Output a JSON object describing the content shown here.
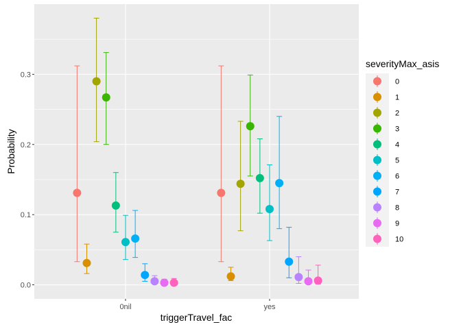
{
  "chart_data": {
    "type": "scatter",
    "xlabel": "triggerTravel_fac",
    "ylabel": "Probability",
    "categories": [
      "0nil",
      "yes"
    ],
    "ylim": [
      -0.02,
      0.4
    ],
    "yticks": [
      "0.0",
      "0.1",
      "0.2",
      "0.3"
    ],
    "grid": true,
    "legend_title": "severityMax_asis",
    "legend_position": "right",
    "series": [
      {
        "name": "0",
        "color": "#F8766D",
        "values": [
          0.131,
          0.131
        ],
        "lower": [
          0.033,
          0.033
        ],
        "upper": [
          0.312,
          0.312
        ]
      },
      {
        "name": "1",
        "color": "#D89000",
        "values": [
          0.031,
          0.012
        ],
        "lower": [
          0.016,
          0.006
        ],
        "upper": [
          0.058,
          0.025
        ]
      },
      {
        "name": "2",
        "color": "#A3A500",
        "values": [
          0.29,
          0.144
        ],
        "lower": [
          0.204,
          0.077
        ],
        "upper": [
          0.38,
          0.233
        ]
      },
      {
        "name": "3",
        "color": "#39B600",
        "values": [
          0.267,
          0.226
        ],
        "lower": [
          0.2,
          0.155
        ],
        "upper": [
          0.331,
          0.299
        ]
      },
      {
        "name": "4",
        "color": "#00BF7D",
        "values": [
          0.113,
          0.152
        ],
        "lower": [
          0.075,
          0.102
        ],
        "upper": [
          0.16,
          0.208
        ]
      },
      {
        "name": "5",
        "color": "#00BFC4",
        "values": [
          0.061,
          0.108
        ],
        "lower": [
          0.036,
          0.063
        ],
        "upper": [
          0.099,
          0.171
        ]
      },
      {
        "name": "6",
        "color": "#00B0F6",
        "values": [
          0.066,
          0.145
        ],
        "lower": [
          0.039,
          0.08
        ],
        "upper": [
          0.106,
          0.24
        ]
      },
      {
        "name": "7",
        "color": "#00A5FF",
        "values": [
          0.014,
          0.033
        ],
        "lower": [
          0.005,
          0.01
        ],
        "upper": [
          0.03,
          0.082
        ]
      },
      {
        "name": "8",
        "color": "#B983FF",
        "values": [
          0.005,
          0.011
        ],
        "lower": [
          0.001,
          0.002
        ],
        "upper": [
          0.013,
          0.04
        ]
      },
      {
        "name": "9",
        "color": "#E76BF3",
        "values": [
          0.003,
          0.005
        ],
        "lower": [
          0.001,
          0.001
        ],
        "upper": [
          0.008,
          0.021
        ]
      },
      {
        "name": "10",
        "color": "#FF62BC",
        "values": [
          0.003,
          0.006
        ],
        "lower": [
          0.001,
          0.001
        ],
        "upper": [
          0.009,
          0.028
        ]
      }
    ]
  }
}
